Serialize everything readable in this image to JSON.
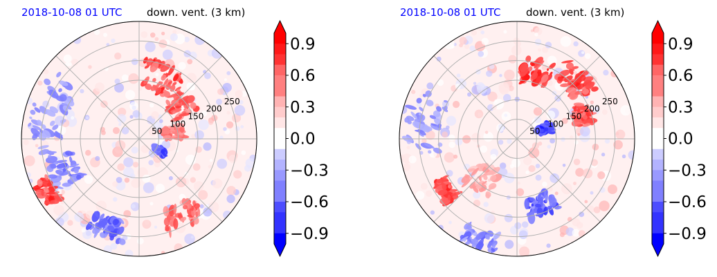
{
  "colors": {
    "title_date": "#0000ff",
    "title_var": "#000000",
    "positive": "#ff0000",
    "negative": "#0000ff",
    "grid": "#b0b0b0"
  },
  "chart_data": [
    {
      "type": "heatmap",
      "projection": "polar",
      "title_date": "2018-10-08 01 UTC",
      "title_var": "down. vent. (3 km)",
      "radial_ticks": [
        "50",
        "100",
        "150",
        "200",
        "250"
      ],
      "radial_values": [
        50,
        100,
        150,
        200,
        250
      ],
      "radial_rings": [
        50,
        100,
        150,
        200,
        250,
        300
      ],
      "radial_label_angle_deg": 22.5,
      "grid": true,
      "colorbar": {
        "vmin": -1.0,
        "vmax": 1.0,
        "step": 0.1,
        "extend": "both",
        "ticks": [
          0.9,
          0.6,
          0.3,
          0.0,
          -0.3,
          -0.6,
          -0.9
        ],
        "tick_labels": [
          "0.9",
          "0.6",
          "0.3",
          "0.0",
          "−0.3",
          "−0.6",
          "−0.9"
        ],
        "cmap": "bwr"
      },
      "features": [
        {
          "r": 0.55,
          "theta": 70,
          "value": 0.85,
          "size": 0.25
        },
        {
          "r": 0.45,
          "theta": 40,
          "value": 0.75,
          "size": 0.2
        },
        {
          "r": 0.3,
          "theta": 10,
          "value": 0.6,
          "size": 0.15
        },
        {
          "r": 0.8,
          "theta": 160,
          "value": -0.5,
          "size": 0.3
        },
        {
          "r": 0.7,
          "theta": 200,
          "value": -0.6,
          "size": 0.25
        },
        {
          "r": 0.9,
          "theta": 210,
          "value": 0.9,
          "size": 0.12
        },
        {
          "r": 0.75,
          "theta": 300,
          "value": 0.7,
          "size": 0.2
        },
        {
          "r": 0.8,
          "theta": 250,
          "value": -0.7,
          "size": 0.18
        },
        {
          "r": 0.2,
          "theta": 330,
          "value": -0.8,
          "size": 0.1
        }
      ]
    },
    {
      "type": "heatmap",
      "projection": "polar",
      "title_date": "2018-10-08 01 UTC",
      "title_var": "down. vent. (3 km)",
      "radial_ticks": [
        "50",
        "100",
        "150",
        "200",
        "250"
      ],
      "radial_values": [
        50,
        100,
        150,
        200,
        250
      ],
      "radial_rings": [
        50,
        100,
        150,
        200,
        250,
        300
      ],
      "radial_label_angle_deg": 22.5,
      "grid": true,
      "colorbar": {
        "vmin": -1.0,
        "vmax": 1.0,
        "step": 0.1,
        "extend": "both",
        "ticks": [
          0.9,
          0.6,
          0.3,
          0.0,
          -0.3,
          -0.6,
          -0.9
        ],
        "tick_labels": [
          "0.9",
          "0.6",
          "0.3",
          "0.0",
          "−0.3",
          "−0.6",
          "−0.9"
        ],
        "cmap": "bwr"
      },
      "features": [
        {
          "r": 0.6,
          "theta": 75,
          "value": 0.95,
          "size": 0.2
        },
        {
          "r": 0.7,
          "theta": 45,
          "value": 0.9,
          "size": 0.2
        },
        {
          "r": 0.6,
          "theta": 20,
          "value": 0.8,
          "size": 0.15
        },
        {
          "r": 0.25,
          "theta": 20,
          "value": -0.9,
          "size": 0.12
        },
        {
          "r": 0.8,
          "theta": 170,
          "value": -0.5,
          "size": 0.3
        },
        {
          "r": 0.75,
          "theta": 215,
          "value": 0.9,
          "size": 0.12
        },
        {
          "r": 0.6,
          "theta": 290,
          "value": -0.8,
          "size": 0.2
        },
        {
          "r": 0.45,
          "theta": 230,
          "value": 0.4,
          "size": 0.25
        },
        {
          "r": 0.9,
          "theta": 250,
          "value": -0.6,
          "size": 0.15
        }
      ]
    }
  ]
}
